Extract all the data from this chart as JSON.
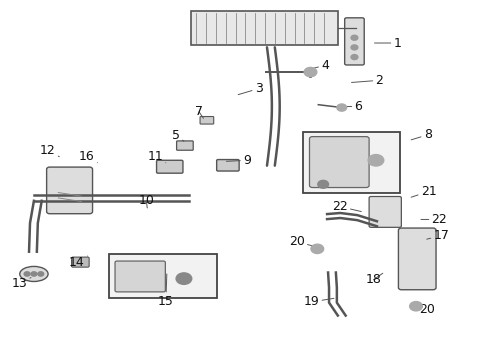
{
  "background_color": "#ffffff",
  "font_size": 9,
  "label_color": "#111111",
  "labels": [
    [
      1,
      0.765,
      0.118,
      0.812,
      0.118
    ],
    [
      2,
      0.718,
      0.228,
      0.775,
      0.222
    ],
    [
      3,
      0.486,
      0.262,
      0.528,
      0.245
    ],
    [
      4,
      0.63,
      0.192,
      0.664,
      0.18
    ],
    [
      5,
      0.375,
      0.392,
      0.358,
      0.375
    ],
    [
      6,
      0.692,
      0.295,
      0.732,
      0.295
    ],
    [
      7,
      0.415,
      0.328,
      0.406,
      0.31
    ],
    [
      8,
      0.84,
      0.388,
      0.874,
      0.374
    ],
    [
      9,
      0.462,
      0.448,
      0.504,
      0.445
    ],
    [
      10,
      0.3,
      0.578,
      0.298,
      0.558
    ],
    [
      11,
      0.338,
      0.452,
      0.316,
      0.435
    ],
    [
      12,
      0.12,
      0.435,
      0.096,
      0.418
    ],
    [
      13,
      0.062,
      0.772,
      0.038,
      0.79
    ],
    [
      14,
      0.178,
      0.712,
      0.156,
      0.73
    ],
    [
      15,
      0.34,
      0.762,
      0.338,
      0.838
    ],
    [
      16,
      0.198,
      0.452,
      0.176,
      0.435
    ],
    [
      17,
      0.872,
      0.665,
      0.902,
      0.655
    ],
    [
      18,
      0.782,
      0.76,
      0.763,
      0.778
    ],
    [
      19,
      0.682,
      0.83,
      0.636,
      0.84
    ],
    [
      20,
      0.65,
      0.688,
      0.606,
      0.672
    ],
    [
      20,
      0.842,
      0.848,
      0.872,
      0.86
    ],
    [
      21,
      0.84,
      0.548,
      0.876,
      0.532
    ],
    [
      22,
      0.738,
      0.588,
      0.694,
      0.574
    ],
    [
      22,
      0.86,
      0.61,
      0.898,
      0.61
    ]
  ]
}
